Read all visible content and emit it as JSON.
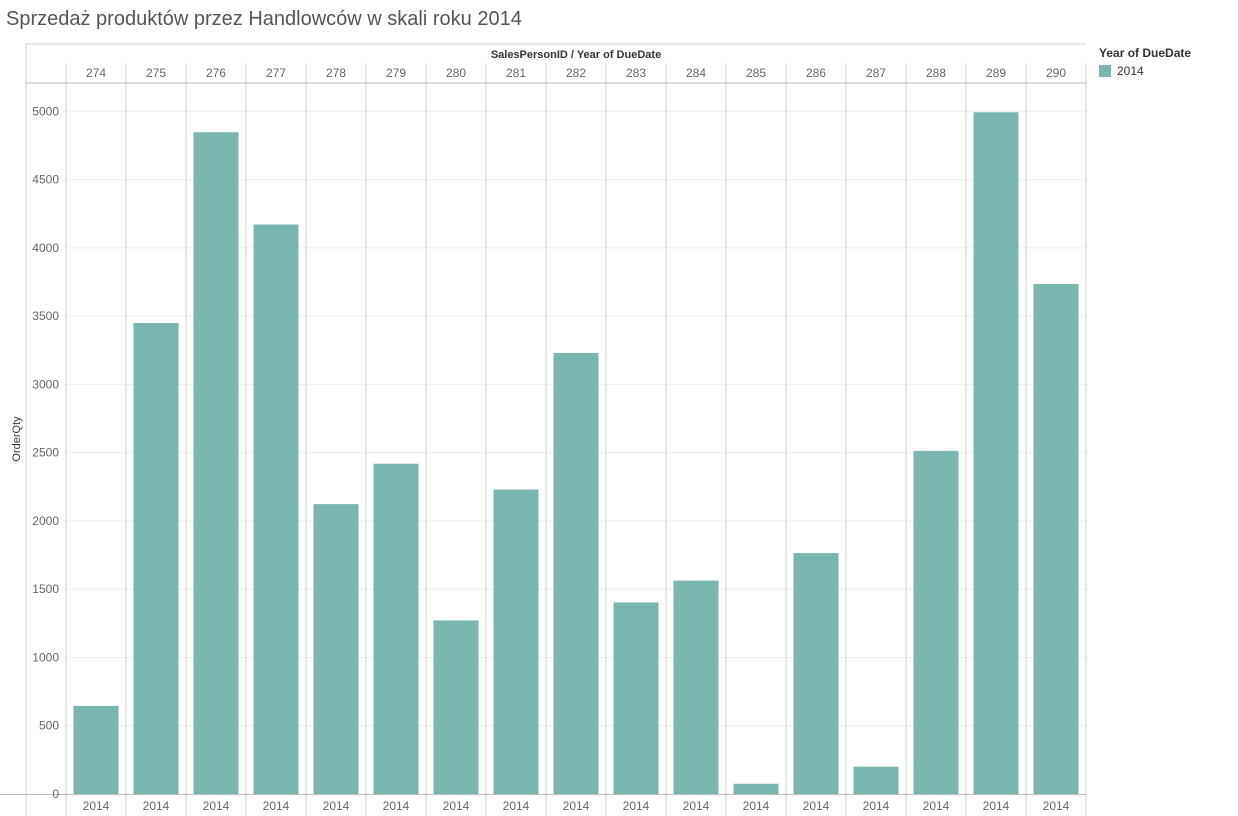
{
  "title": "Sprzedaż produktów przez Handlowców w skali roku 2014",
  "colors": {
    "bar": "#79b6b0",
    "grid": "#eeeeee",
    "divider": "#d0d0d0",
    "axis": "#bbbbbb"
  },
  "legend": {
    "title": "Year of DueDate",
    "items": [
      {
        "label": "2014",
        "color": "#79b6b0"
      }
    ]
  },
  "chart_data": {
    "type": "bar",
    "title": "Sprzedaż produktów przez Handlowców w skali roku 2014",
    "header_label": "SalesPersonID  /  Year of DueDate",
    "ylabel": "OrderQty",
    "xlabel": "",
    "ylim": [
      0,
      5200
    ],
    "yticks": [
      0,
      500,
      1000,
      1500,
      2000,
      2500,
      3000,
      3500,
      4000,
      4500,
      5000
    ],
    "grid": true,
    "legend_position": "right",
    "categories": [
      "274",
      "275",
      "276",
      "277",
      "278",
      "279",
      "280",
      "281",
      "282",
      "283",
      "284",
      "285",
      "286",
      "287",
      "288",
      "289",
      "290"
    ],
    "sub_categories": [
      "2014",
      "2014",
      "2014",
      "2014",
      "2014",
      "2014",
      "2014",
      "2014",
      "2014",
      "2014",
      "2014",
      "2014",
      "2014",
      "2014",
      "2014",
      "2014",
      "2014"
    ],
    "series": [
      {
        "name": "2014",
        "values": [
          645,
          3449,
          4847,
          4171,
          2123,
          2419,
          1271,
          2230,
          3230,
          1403,
          1563,
          75,
          1764,
          200,
          2513,
          4993,
          3735
        ]
      }
    ]
  }
}
